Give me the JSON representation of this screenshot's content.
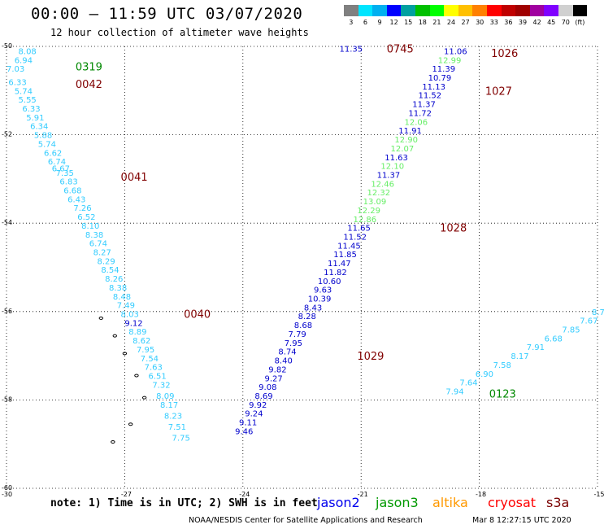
{
  "title": "00:00 – 11:59 UTC 03/07/2020",
  "subtitle": "12 hour collection of altimeter wave heights",
  "legend": {
    "colors": [
      "#808080",
      "#00e5ff",
      "#00b0f0",
      "#0000ff",
      "#00a0a0",
      "#00c000",
      "#00ff00",
      "#ffff00",
      "#ffc000",
      "#ff8000",
      "#ff0000",
      "#c00000",
      "#a00000",
      "#a000a0",
      "#8000ff",
      "#d0d0d0",
      "#000000"
    ],
    "labels": [
      "3",
      "6",
      "9",
      "12",
      "15",
      "18",
      "21",
      "24",
      "27",
      "30",
      "33",
      "36",
      "39",
      "42",
      "45",
      "70",
      "(ft)"
    ]
  },
  "lat_labels": [
    "-50",
    "-52",
    "-54",
    "-56",
    "-58",
    "-60"
  ],
  "lon_labels": [
    "-30",
    "-27",
    "-24",
    "-21",
    "-18",
    "-15"
  ],
  "note": "note:  1) Time is in UTC;  2) SWH is in feet",
  "satellites": [
    {
      "name": "jason2",
      "color": "#0000ee"
    },
    {
      "name": "jason3",
      "color": "#009900"
    },
    {
      "name": "altika",
      "color": "#ff9900"
    },
    {
      "name": "cryosat",
      "color": "#ff0000"
    },
    {
      "name": "s3a",
      "color": "#7a0000"
    }
  ],
  "credit": "NOAA/NESDIS Center for Satellite Applications and Research",
  "credit_time": "Mar  8 12:27:15 UTC 2020",
  "chart_data": {
    "type": "scatter",
    "xlim": [
      -30,
      -15
    ],
    "ylim": [
      -60,
      -50
    ],
    "grid": true,
    "colors": {
      "s3a_light": "#33ccff",
      "jason2": "#0000cc",
      "jason3_light": "#66ee66",
      "time_label": "#800000",
      "time_label_green": "#008800"
    },
    "points": [
      {
        "lon": -29.7,
        "lat": -50.1,
        "v": "8.08",
        "c": "s3a_light"
      },
      {
        "lon": -29.8,
        "lat": -50.3,
        "v": "6.94",
        "c": "s3a_light"
      },
      {
        "lon": -30.0,
        "lat": -50.5,
        "v": "7.03",
        "c": "s3a_light"
      },
      {
        "lon": -29.95,
        "lat": -50.8,
        "v": "6.33",
        "c": "s3a_light"
      },
      {
        "lon": -29.8,
        "lat": -51.0,
        "v": "5.74",
        "c": "s3a_light"
      },
      {
        "lon": -29.7,
        "lat": -51.2,
        "v": "5.55",
        "c": "s3a_light"
      },
      {
        "lon": -29.6,
        "lat": -51.4,
        "v": "6.33",
        "c": "s3a_light"
      },
      {
        "lon": -29.5,
        "lat": -51.6,
        "v": "5.91",
        "c": "s3a_light"
      },
      {
        "lon": -29.4,
        "lat": -51.8,
        "v": "6.34",
        "c": "s3a_light"
      },
      {
        "lon": -29.3,
        "lat": -52.0,
        "v": "5.88",
        "c": "s3a_light"
      },
      {
        "lon": -29.2,
        "lat": -52.2,
        "v": "5.74",
        "c": "s3a_light"
      },
      {
        "lon": -29.05,
        "lat": -52.4,
        "v": "6.62",
        "c": "s3a_light"
      },
      {
        "lon": -28.95,
        "lat": -52.6,
        "v": "6.74",
        "c": "s3a_light"
      },
      {
        "lon": -28.85,
        "lat": -52.75,
        "v": "6.67",
        "c": "s3a_light"
      },
      {
        "lon": -28.75,
        "lat": -52.85,
        "v": "7.35",
        "c": "s3a_light"
      },
      {
        "lon": -28.65,
        "lat": -53.05,
        "v": "6.83",
        "c": "s3a_light"
      },
      {
        "lon": -28.55,
        "lat": -53.25,
        "v": "6.68",
        "c": "s3a_light"
      },
      {
        "lon": -28.45,
        "lat": -53.45,
        "v": "6.43",
        "c": "s3a_light"
      },
      {
        "lon": -28.3,
        "lat": -53.65,
        "v": "7.26",
        "c": "s3a_light"
      },
      {
        "lon": -28.2,
        "lat": -53.85,
        "v": "6.52",
        "c": "s3a_light"
      },
      {
        "lon": -28.1,
        "lat": -54.05,
        "v": "8.10",
        "c": "s3a_light"
      },
      {
        "lon": -28.0,
        "lat": -54.25,
        "v": "8.38",
        "c": "s3a_light"
      },
      {
        "lon": -27.9,
        "lat": -54.45,
        "v": "6.74",
        "c": "s3a_light"
      },
      {
        "lon": -27.8,
        "lat": -54.65,
        "v": "8.27",
        "c": "s3a_light"
      },
      {
        "lon": -27.7,
        "lat": -54.85,
        "v": "8.29",
        "c": "s3a_light"
      },
      {
        "lon": -27.6,
        "lat": -55.05,
        "v": "8.54",
        "c": "s3a_light"
      },
      {
        "lon": -27.5,
        "lat": -55.25,
        "v": "8.26",
        "c": "s3a_light"
      },
      {
        "lon": -27.4,
        "lat": -55.45,
        "v": "8.38",
        "c": "s3a_light"
      },
      {
        "lon": -27.3,
        "lat": -55.65,
        "v": "8.48",
        "c": "s3a_light"
      },
      {
        "lon": -27.2,
        "lat": -55.85,
        "v": "7.49",
        "c": "s3a_light"
      },
      {
        "lon": -27.1,
        "lat": -56.05,
        "v": "8.03",
        "c": "s3a_light"
      },
      {
        "lon": -27.0,
        "lat": -56.25,
        "v": "9.12",
        "c": "jason2"
      },
      {
        "lon": -26.9,
        "lat": -56.45,
        "v": "8.89",
        "c": "s3a_light"
      },
      {
        "lon": -26.8,
        "lat": -56.65,
        "v": "8.62",
        "c": "s3a_light"
      },
      {
        "lon": -26.7,
        "lat": -56.85,
        "v": "7.95",
        "c": "s3a_light"
      },
      {
        "lon": -26.6,
        "lat": -57.05,
        "v": "7.54",
        "c": "s3a_light"
      },
      {
        "lon": -26.5,
        "lat": -57.25,
        "v": "7.63",
        "c": "s3a_light"
      },
      {
        "lon": -26.4,
        "lat": -57.45,
        "v": "6.51",
        "c": "s3a_light"
      },
      {
        "lon": -26.3,
        "lat": -57.65,
        "v": "7.32",
        "c": "s3a_light"
      },
      {
        "lon": -26.2,
        "lat": -57.9,
        "v": "8.09",
        "c": "s3a_light"
      },
      {
        "lon": -26.1,
        "lat": -58.1,
        "v": "8.17",
        "c": "s3a_light"
      },
      {
        "lon": -26.0,
        "lat": -58.35,
        "v": "8.23",
        "c": "s3a_light"
      },
      {
        "lon": -25.9,
        "lat": -58.6,
        "v": "7.51",
        "c": "s3a_light"
      },
      {
        "lon": -25.8,
        "lat": -58.85,
        "v": "7.75",
        "c": "s3a_light"
      },
      {
        "lon": -21.55,
        "lat": -50.05,
        "v": "11.35",
        "c": "jason2"
      },
      {
        "lon": -18.9,
        "lat": -50.1,
        "v": "11.06",
        "c": "jason2"
      },
      {
        "lon": -19.05,
        "lat": -50.3,
        "v": "12.99",
        "c": "jason3_light"
      },
      {
        "lon": -19.2,
        "lat": -50.5,
        "v": "11.39",
        "c": "jason2"
      },
      {
        "lon": -19.3,
        "lat": -50.7,
        "v": "10.79",
        "c": "jason2"
      },
      {
        "lon": -19.45,
        "lat": -50.9,
        "v": "11.13",
        "c": "jason2"
      },
      {
        "lon": -19.55,
        "lat": -51.1,
        "v": "11.52",
        "c": "jason2"
      },
      {
        "lon": -19.7,
        "lat": -51.3,
        "v": "11.37",
        "c": "jason2"
      },
      {
        "lon": -19.8,
        "lat": -51.5,
        "v": "11.72",
        "c": "jason2"
      },
      {
        "lon": -19.9,
        "lat": -51.7,
        "v": "12.06",
        "c": "jason3_light"
      },
      {
        "lon": -20.05,
        "lat": -51.9,
        "v": "11.91",
        "c": "jason2"
      },
      {
        "lon": -20.15,
        "lat": -52.1,
        "v": "12.90",
        "c": "jason3_light"
      },
      {
        "lon": -20.25,
        "lat": -52.3,
        "v": "12.07",
        "c": "jason3_light"
      },
      {
        "lon": -20.4,
        "lat": -52.5,
        "v": "11.63",
        "c": "jason2"
      },
      {
        "lon": -20.5,
        "lat": -52.7,
        "v": "12.10",
        "c": "jason3_light"
      },
      {
        "lon": -20.6,
        "lat": -52.9,
        "v": "11.37",
        "c": "jason2"
      },
      {
        "lon": -20.75,
        "lat": -53.1,
        "v": "12.46",
        "c": "jason3_light"
      },
      {
        "lon": -20.85,
        "lat": -53.3,
        "v": "12.32",
        "c": "jason3_light"
      },
      {
        "lon": -20.95,
        "lat": -53.5,
        "v": "13.09",
        "c": "jason3_light"
      },
      {
        "lon": -21.1,
        "lat": -53.7,
        "v": "12.29",
        "c": "jason3_light"
      },
      {
        "lon": -21.2,
        "lat": -53.9,
        "v": "12.86",
        "c": "jason3_light"
      },
      {
        "lon": -21.35,
        "lat": -54.1,
        "v": "11.65",
        "c": "jason2"
      },
      {
        "lon": -21.45,
        "lat": -54.3,
        "v": "11.52",
        "c": "jason2"
      },
      {
        "lon": -21.6,
        "lat": -54.5,
        "v": "11.45",
        "c": "jason2"
      },
      {
        "lon": -21.7,
        "lat": -54.7,
        "v": "11.85",
        "c": "jason2"
      },
      {
        "lon": -21.85,
        "lat": -54.9,
        "v": "11.47",
        "c": "jason2"
      },
      {
        "lon": -21.95,
        "lat": -55.1,
        "v": "11.82",
        "c": "jason2"
      },
      {
        "lon": -22.1,
        "lat": -55.3,
        "v": "10.60",
        "c": "jason2"
      },
      {
        "lon": -22.2,
        "lat": -55.5,
        "v": "9.63",
        "c": "jason2"
      },
      {
        "lon": -22.35,
        "lat": -55.7,
        "v": "10.39",
        "c": "jason2"
      },
      {
        "lon": -22.45,
        "lat": -55.9,
        "v": "8.43",
        "c": "jason2"
      },
      {
        "lon": -22.6,
        "lat": -56.1,
        "v": "8.28",
        "c": "jason2"
      },
      {
        "lon": -22.7,
        "lat": -56.3,
        "v": "8.68",
        "c": "jason2"
      },
      {
        "lon": -22.85,
        "lat": -56.5,
        "v": "7.79",
        "c": "jason2"
      },
      {
        "lon": -22.95,
        "lat": -56.7,
        "v": "7.95",
        "c": "jason2"
      },
      {
        "lon": -23.1,
        "lat": -56.9,
        "v": "8.74",
        "c": "jason2"
      },
      {
        "lon": -23.2,
        "lat": -57.1,
        "v": "8.40",
        "c": "jason2"
      },
      {
        "lon": -23.35,
        "lat": -57.3,
        "v": "9.82",
        "c": "jason2"
      },
      {
        "lon": -23.45,
        "lat": -57.5,
        "v": "9.27",
        "c": "jason2"
      },
      {
        "lon": -23.6,
        "lat": -57.7,
        "v": "9.08",
        "c": "jason2"
      },
      {
        "lon": -23.7,
        "lat": -57.9,
        "v": "8.69",
        "c": "jason2"
      },
      {
        "lon": -23.85,
        "lat": -58.1,
        "v": "9.92",
        "c": "jason2"
      },
      {
        "lon": -23.95,
        "lat": -58.3,
        "v": "9.24",
        "c": "jason2"
      },
      {
        "lon": -24.1,
        "lat": -58.5,
        "v": "9.11",
        "c": "jason2"
      },
      {
        "lon": -24.2,
        "lat": -58.7,
        "v": "9.46",
        "c": "jason2"
      },
      {
        "lon": -15.0,
        "lat": -56.0,
        "v": "8.7",
        "c": "s3a_light"
      },
      {
        "lon": -15.45,
        "lat": -56.2,
        "v": "7.67",
        "c": "s3a_light"
      },
      {
        "lon": -15.9,
        "lat": -56.4,
        "v": "7.85",
        "c": "s3a_light"
      },
      {
        "lon": -16.35,
        "lat": -56.6,
        "v": "6.68",
        "c": "s3a_light"
      },
      {
        "lon": -16.8,
        "lat": -56.8,
        "v": "7.91",
        "c": "s3a_light"
      },
      {
        "lon": -17.2,
        "lat": -57.0,
        "v": "8.17",
        "c": "s3a_light"
      },
      {
        "lon": -17.65,
        "lat": -57.2,
        "v": "7.58",
        "c": "s3a_light"
      },
      {
        "lon": -18.1,
        "lat": -57.4,
        "v": "6.90",
        "c": "s3a_light"
      },
      {
        "lon": -18.5,
        "lat": -57.6,
        "v": "7.64",
        "c": "s3a_light"
      },
      {
        "lon": -18.85,
        "lat": -57.8,
        "v": "7.94",
        "c": "s3a_light"
      }
    ],
    "time_labels": [
      {
        "lon": -28.25,
        "lat": -50.45,
        "v": "0319",
        "c": "time_label_green"
      },
      {
        "lon": -28.25,
        "lat": -50.85,
        "v": "0042",
        "c": "time_label"
      },
      {
        "lon": -27.1,
        "lat": -52.95,
        "v": "0041",
        "c": "time_label"
      },
      {
        "lon": -25.5,
        "lat": -56.05,
        "v": "0040",
        "c": "time_label"
      },
      {
        "lon": -20.35,
        "lat": -50.05,
        "v": "0745",
        "c": "time_label"
      },
      {
        "lon": -17.7,
        "lat": -50.15,
        "v": "1026",
        "c": "time_label"
      },
      {
        "lon": -17.85,
        "lat": -51.0,
        "v": "1027",
        "c": "time_label"
      },
      {
        "lon": -19.0,
        "lat": -54.1,
        "v": "1028",
        "c": "time_label"
      },
      {
        "lon": -21.1,
        "lat": -57.0,
        "v": "1029",
        "c": "time_label"
      },
      {
        "lon": -17.75,
        "lat": -57.85,
        "v": "0123",
        "c": "time_label_green"
      }
    ],
    "islands": [
      {
        "lon": -27.6,
        "lat": -56.15
      },
      {
        "lon": -27.25,
        "lat": -56.55
      },
      {
        "lon": -27.0,
        "lat": -56.95
      },
      {
        "lon": -26.7,
        "lat": -57.45
      },
      {
        "lon": -26.5,
        "lat": -57.95
      },
      {
        "lon": -26.85,
        "lat": -58.55
      },
      {
        "lon": -27.3,
        "lat": -58.95
      }
    ]
  }
}
